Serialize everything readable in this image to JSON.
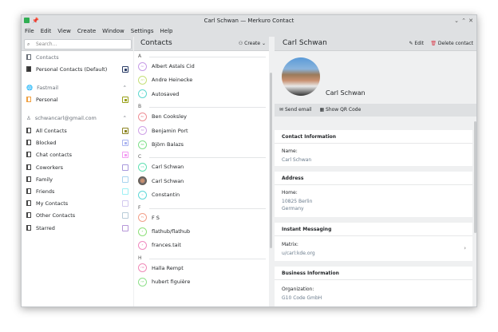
{
  "window": {
    "title": "Carl Schwan — Merkuro Contact",
    "controls": [
      "⌄",
      "⌃",
      "✕"
    ]
  },
  "menu": [
    "File",
    "Edit",
    "View",
    "Create",
    "Window",
    "Settings",
    "Help"
  ],
  "search": {
    "placeholder": "Search..."
  },
  "sidebar": {
    "sections": [
      {
        "title": "Contacts",
        "items": [
          {
            "label": "Personal Contacts (Default)",
            "color": "#2b3d66"
          }
        ]
      },
      {
        "title": "Fastmail",
        "items": [
          {
            "label": "Personal",
            "color": "#9aa11a"
          }
        ]
      },
      {
        "title": "schwancarl@gmail.com",
        "items": [
          {
            "label": "All Contacts",
            "color": "#8b8320"
          },
          {
            "label": "Blocked",
            "color": "#aab4f0"
          },
          {
            "label": "Chat contacts",
            "color": "#f29cf2"
          },
          {
            "label": "Coworkers",
            "color": "#a898dc"
          },
          {
            "label": "Family",
            "color": "#a8d4ef"
          },
          {
            "label": "Friends",
            "color": "#9ef0f4"
          },
          {
            "label": "My Contacts",
            "color": "#d2c8ef"
          },
          {
            "label": "Other Contacts",
            "color": "#b8cbd8"
          },
          {
            "label": "Starred",
            "color": "#b697d8"
          }
        ]
      }
    ]
  },
  "list": {
    "title": "Contacts",
    "create_label": "Create",
    "groups": [
      {
        "letter": "A",
        "contacts": [
          {
            "name": "Albert Astals Cid",
            "initials": "AC",
            "color": "#c79ce8"
          },
          {
            "name": "Andre Heinecke",
            "initials": "AH",
            "color": "#c6e07a"
          },
          {
            "name": "Autosaved",
            "initials": "A",
            "color": "#5fd8cf"
          }
        ]
      },
      {
        "letter": "B",
        "contacts": [
          {
            "name": "Ben Cooksley",
            "initials": "BC",
            "color": "#ee8f96"
          },
          {
            "name": "Benjamin Port",
            "initials": "BP",
            "color": "#cfa2e8"
          },
          {
            "name": "Björn Balazs",
            "initials": "BB",
            "color": "#7ee08a"
          }
        ]
      },
      {
        "letter": "C",
        "contacts": [
          {
            "name": "Carl Schwan",
            "initials": "CS",
            "color": "#5fe0b2"
          },
          {
            "name": "Carl Schwan",
            "initials": "",
            "color": "#6b6052"
          },
          {
            "name": "Constantin",
            "initials": "C",
            "color": "#5fd8d8"
          }
        ]
      },
      {
        "letter": "F",
        "contacts": [
          {
            "name": "F S",
            "initials": "FS",
            "color": "#f2a08a"
          },
          {
            "name": "flathub/flathub",
            "initials": "F",
            "color": "#8ee07a"
          },
          {
            "name": "frances.tait",
            "initials": "F",
            "color": "#f08ac0"
          }
        ]
      },
      {
        "letter": "H",
        "contacts": [
          {
            "name": "Halla Rempt",
            "initials": "HR",
            "color": "#f08ab8"
          },
          {
            "name": "hubert figuière",
            "initials": "HF",
            "color": "#8ee08a"
          }
        ]
      }
    ]
  },
  "detail": {
    "title": "Carl Schwan",
    "edit_label": "Edit",
    "delete_label": "Delete contact",
    "name": "Carl Schwan",
    "send_email": "Send email",
    "show_qr": "Show QR Code",
    "cards": {
      "contact": {
        "title": "Contact Information",
        "name_label": "Name:",
        "name_value": "Carl Schwan"
      },
      "address": {
        "title": "Address",
        "label": "Home:",
        "line1": "10825 Berlin",
        "line2": "Germany"
      },
      "im": {
        "title": "Instant Messaging",
        "label": "Matrix:",
        "value": "u/carl:kde.org"
      },
      "business": {
        "title": "Business Information",
        "label": "Organization:",
        "value": "G10 Code GmbH"
      }
    }
  }
}
